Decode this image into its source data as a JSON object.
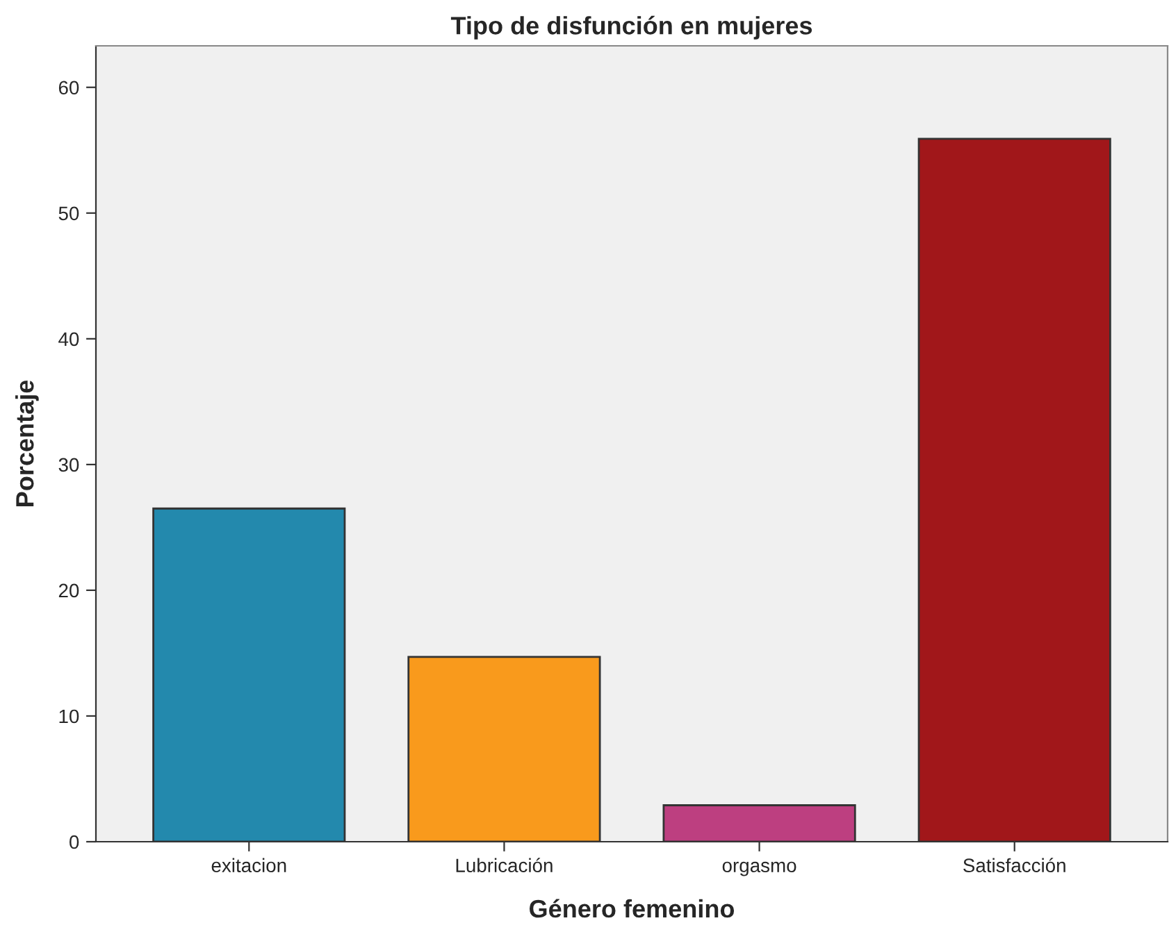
{
  "chart_data": {
    "type": "bar",
    "title": "Tipo de disfunción en mujeres",
    "xlabel": "Género femenino",
    "ylabel": "Porcentaje",
    "categories": [
      "exitacion",
      "Lubricación",
      "orgasmo",
      "Satisfacción"
    ],
    "values": [
      26.5,
      14.7,
      2.9,
      55.9
    ],
    "colors": [
      "#2389ad",
      "#f99a1c",
      "#bd3f80",
      "#a1171a"
    ],
    "ylim": [
      0,
      63.3
    ],
    "yticks": [
      0,
      10,
      20,
      30,
      40,
      50,
      60
    ],
    "grid": false,
    "legend": false
  }
}
